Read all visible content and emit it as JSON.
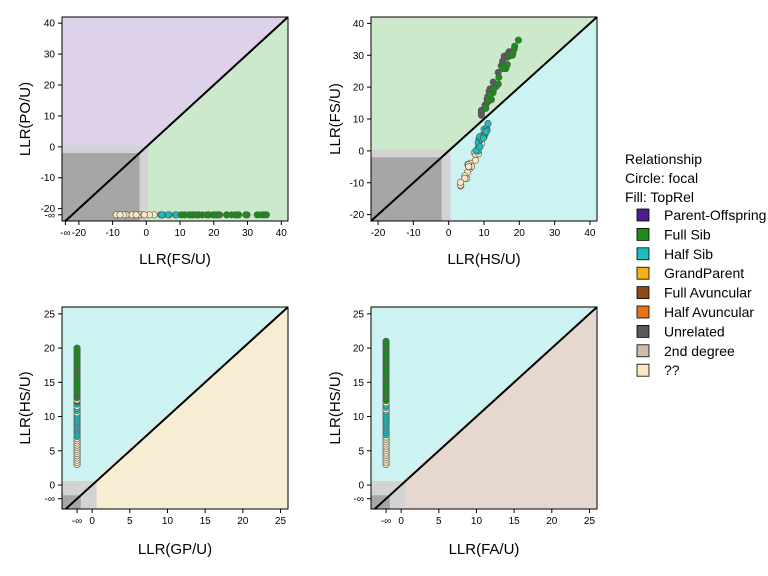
{
  "colors": {
    "po_zone": "#ddd2e9",
    "fs_zone": "#cce9cc",
    "hs_zone": "#cdf2f2",
    "gp_zone": "#f7edd3",
    "fa_zone": "#e6d8cf",
    "unrel_dark": "#a6a6a6",
    "unrel_light": "#d3d3d3"
  },
  "legend": {
    "title": "Relationship",
    "circle_note": "Circle: focal",
    "fill_note": "Fill: TopRel",
    "entries": [
      {
        "label": "Parent-Offspring",
        "color": "#4b1f8c"
      },
      {
        "label": "Full Sib",
        "color": "#1d8c1d"
      },
      {
        "label": "Half Sib",
        "color": "#1fbcbc"
      },
      {
        "label": "GrandParent",
        "color": "#f2b01c"
      },
      {
        "label": "Full Avuncular",
        "color": "#8a4a1a"
      },
      {
        "label": "Half Avuncular",
        "color": "#e8731c"
      },
      {
        "label": "Unrelated",
        "color": "#5a5a5a"
      },
      {
        "label": "2nd degree",
        "color": "#d2bca8"
      },
      {
        "label": "??",
        "color": "#fbe6c2"
      }
    ]
  },
  "chart_data": [
    {
      "type": "scatter",
      "xlabel": "LLR(FS/U)",
      "ylabel": "LLR(PO/U)",
      "xlim": [
        -25,
        42
      ],
      "ylim": [
        -24,
        42
      ],
      "xticks": [
        "-∞",
        "-20",
        "-10",
        "0",
        "10",
        "20",
        "30",
        "40"
      ],
      "yticks": [
        "-∞",
        "-20",
        "-10",
        "0",
        "10",
        "20",
        "30",
        "40"
      ],
      "zones": {
        "upper": "po_zone",
        "lower": "fs_zone"
      },
      "points": {
        "y_inf": true,
        "x_range": [
          -10,
          36
        ],
        "n": 60,
        "groups": [
          {
            "fill": "#fbe6c2",
            "x_range": [
              -10,
              4
            ]
          },
          {
            "fill": "#1fbcbc",
            "x_range": [
              4,
              9
            ]
          },
          {
            "fill": "#1d8c1d",
            "x_range": [
              9,
              36
            ]
          }
        ]
      }
    },
    {
      "type": "scatter",
      "xlabel": "LLR(HS/U)",
      "ylabel": "LLR(FS/U)",
      "xlim": [
        -22,
        42
      ],
      "ylim": [
        -22,
        42
      ],
      "xticks": [
        "-20",
        "-10",
        "0",
        "10",
        "20",
        "30",
        "40"
      ],
      "yticks": [
        "-20",
        "-10",
        "0",
        "10",
        "20",
        "30",
        "40"
      ],
      "zones": {
        "upper": "fs_zone",
        "lower": "hs_zone"
      },
      "points": {
        "clusters": [
          {
            "fill": "#fbe6c2",
            "x_range": [
              3.5,
              9
            ],
            "y_range": [
              -11,
              2
            ]
          },
          {
            "fill": "#1fbcbc",
            "x_range": [
              8,
              11
            ],
            "y_range": [
              0,
              8
            ]
          },
          {
            "fill": "#5a5a5a",
            "x_range": [
              9,
              17
            ],
            "y_range": [
              11,
              32
            ]
          },
          {
            "fill": "#1d8c1d",
            "x_range": [
              10,
              20
            ],
            "y_range": [
              12,
              36
            ]
          }
        ]
      }
    },
    {
      "type": "scatter",
      "xlabel": "LLR(GP/U)",
      "ylabel": "LLR(HS/U)",
      "xlim": [
        -4,
        26
      ],
      "ylim": [
        -3.5,
        26
      ],
      "xticks": [
        "-∞",
        "0",
        "5",
        "10",
        "15",
        "20",
        "25"
      ],
      "yticks": [
        "-∞",
        "0",
        "5",
        "10",
        "15",
        "20",
        "25"
      ],
      "zones": {
        "upper": "hs_zone",
        "lower": "gp_zone"
      },
      "points": {
        "x_inf": true,
        "y_range": [
          3,
          20
        ],
        "n": 55
      }
    },
    {
      "type": "scatter",
      "xlabel": "LLR(FA/U)",
      "ylabel": "LLR(HS/U)",
      "xlim": [
        -4,
        26
      ],
      "ylim": [
        -3.5,
        26
      ],
      "xticks": [
        "-∞",
        "0",
        "5",
        "10",
        "15",
        "20",
        "25"
      ],
      "yticks": [
        "-∞",
        "0",
        "5",
        "10",
        "15",
        "20",
        "25"
      ],
      "zones": {
        "upper": "hs_zone",
        "lower": "fa_zone"
      },
      "points": {
        "x_inf": true,
        "y_range": [
          3,
          21
        ],
        "n": 55
      }
    }
  ]
}
